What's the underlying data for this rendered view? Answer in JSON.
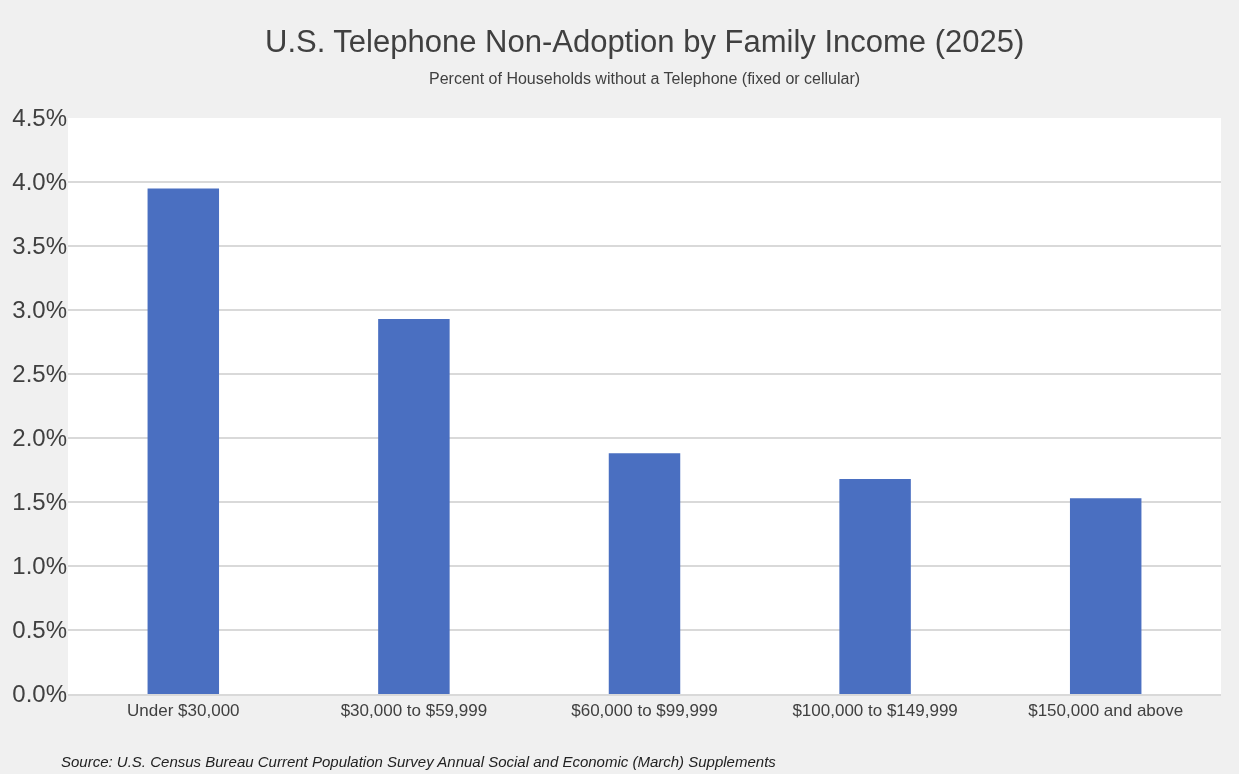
{
  "chart_data": {
    "type": "bar",
    "title": "U.S. Telephone Non-Adoption by Family Income (2025)",
    "subtitle": "Percent of Households without a Telephone (fixed or cellular)",
    "categories": [
      "Under $30,000",
      "$30,000 to $59,999",
      "$60,000 to $99,999",
      "$100,000 to $149,999",
      "$150,000 and above"
    ],
    "values": [
      3.95,
      2.93,
      1.88,
      1.68,
      1.53
    ],
    "color": "#4a6fc1",
    "ylim": [
      0,
      4.5
    ],
    "yticks": [
      {
        "value": 0,
        "label": "0.0%"
      },
      {
        "value": 0.5,
        "label": "0.5%"
      },
      {
        "value": 1,
        "label": "1.0%"
      },
      {
        "value": 1.5,
        "label": "1.5%"
      },
      {
        "value": 2,
        "label": "2.0%"
      },
      {
        "value": 2.5,
        "label": "2.5%"
      },
      {
        "value": 3,
        "label": "3.0%"
      },
      {
        "value": 3.5,
        "label": "3.5%"
      },
      {
        "value": 4,
        "label": "4.0%"
      },
      {
        "value": 4.5,
        "label": "4.5%"
      }
    ],
    "grid": "y",
    "annotations": [
      "Source: U.S. Census Bureau Current Population Survey Annual Social and Economic (March) Supplements"
    ]
  }
}
